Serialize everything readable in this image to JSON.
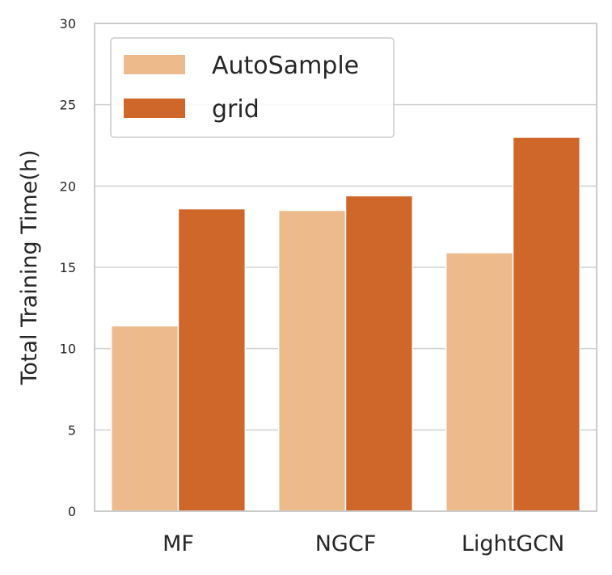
{
  "chart_data": {
    "type": "bar",
    "title": "",
    "xlabel": "",
    "ylabel": "Total Training Time(h)",
    "categories": [
      "MF",
      "NGCF",
      "LightGCN"
    ],
    "series": [
      {
        "name": "AutoSample",
        "color": "#edba8c",
        "values": [
          11.4,
          18.5,
          15.9
        ]
      },
      {
        "name": "grid",
        "color": "#cf662a",
        "values": [
          18.6,
          19.4,
          23.0
        ]
      }
    ],
    "ylim": [
      0,
      30
    ],
    "yticks": [
      0,
      5,
      10,
      15,
      20,
      25,
      30
    ],
    "grid": true,
    "legend_position": "top-left"
  }
}
